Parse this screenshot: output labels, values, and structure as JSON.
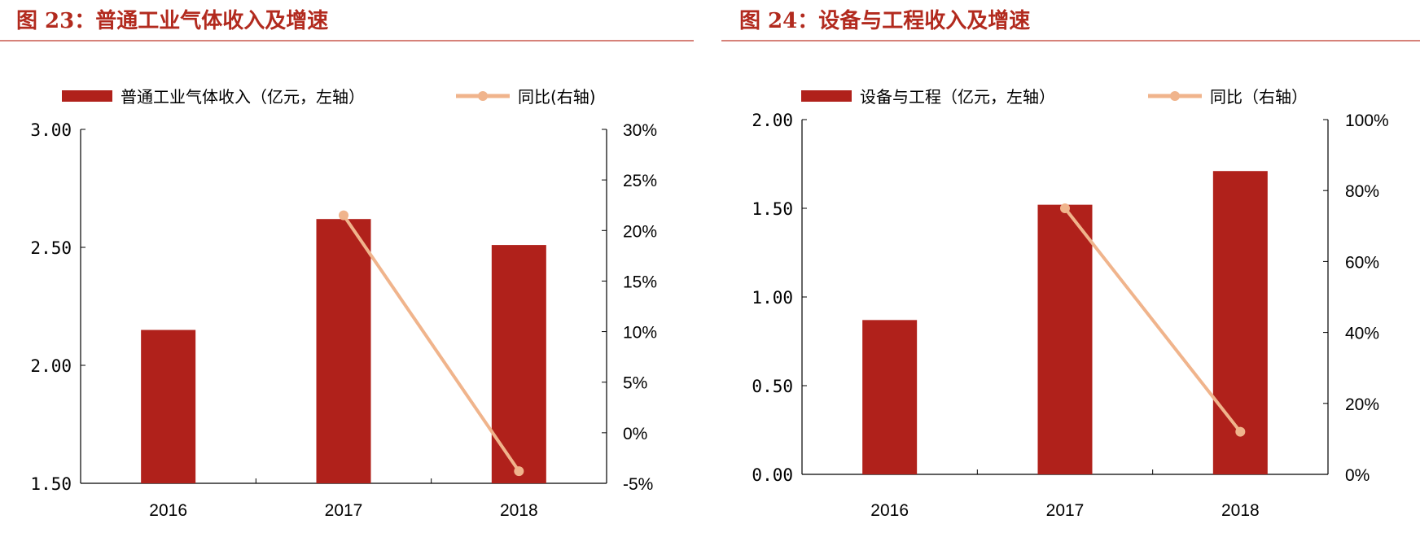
{
  "colors": {
    "bar": "#b0211b",
    "line": "#f0b48c",
    "title": "#b22a1e",
    "rule": "#c8584d"
  },
  "chart_data": [
    {
      "type": "bar+line",
      "title": "图 23：普通工业气体收入及增速",
      "categories": [
        "2016",
        "2017",
        "2018"
      ],
      "series": [
        {
          "name": "普通工业气体收入（亿元，左轴）",
          "type": "bar",
          "axis": "left",
          "values": [
            2.15,
            2.62,
            2.51
          ]
        },
        {
          "name": "同比(右轴)",
          "type": "line",
          "axis": "right",
          "values": [
            null,
            21.5,
            -3.8
          ]
        }
      ],
      "left_axis": {
        "ylim": [
          1.5,
          3.0
        ],
        "ticks": [
          "3.00",
          "2.50",
          "2.00",
          "1.50"
        ],
        "tick_values": [
          3.0,
          2.5,
          2.0,
          1.5
        ]
      },
      "right_axis": {
        "ylim": [
          -5,
          30
        ],
        "ticks": [
          "30%",
          "25%",
          "20%",
          "15%",
          "10%",
          "5%",
          "0%",
          "-5%"
        ],
        "tick_values": [
          30,
          25,
          20,
          15,
          10,
          5,
          0,
          -5
        ]
      },
      "grid": false,
      "legend": "top"
    },
    {
      "type": "bar+line",
      "title": "图 24：设备与工程收入及增速",
      "categories": [
        "2016",
        "2017",
        "2018"
      ],
      "series": [
        {
          "name": "设备与工程（亿元，左轴）",
          "type": "bar",
          "axis": "left",
          "values": [
            0.87,
            1.52,
            1.71
          ]
        },
        {
          "name": "同比（右轴）",
          "type": "line",
          "axis": "right",
          "values": [
            null,
            75,
            12
          ]
        }
      ],
      "left_axis": {
        "ylim": [
          0,
          2.0
        ],
        "ticks": [
          "2.00",
          "1.50",
          "1.00",
          "0.50",
          "0.00"
        ],
        "tick_values": [
          2.0,
          1.5,
          1.0,
          0.5,
          0.0
        ]
      },
      "right_axis": {
        "ylim": [
          0,
          100
        ],
        "ticks": [
          "100%",
          "80%",
          "60%",
          "40%",
          "20%",
          "0%"
        ],
        "tick_values": [
          100,
          80,
          60,
          40,
          20,
          0
        ]
      },
      "grid": false,
      "legend": "top"
    }
  ]
}
